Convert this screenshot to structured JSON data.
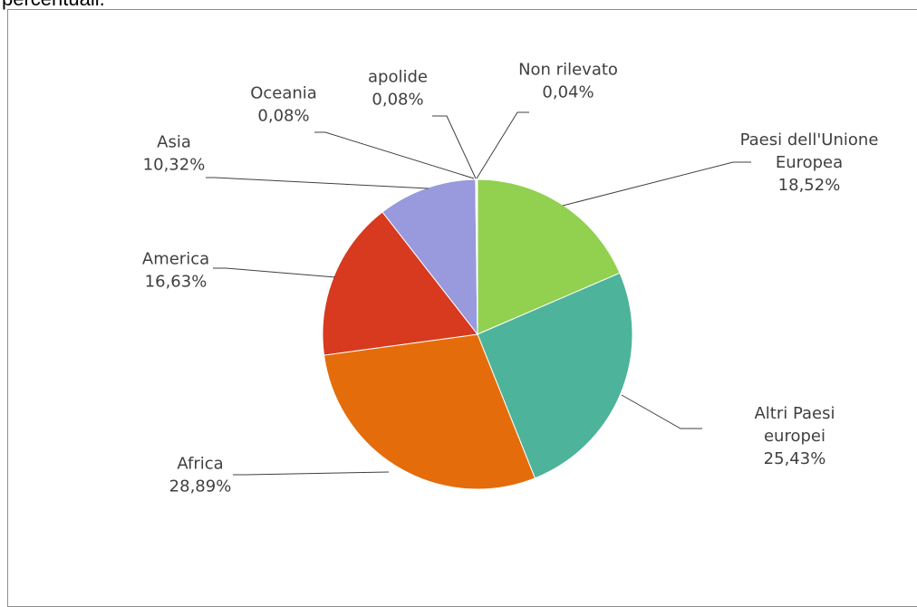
{
  "caption": {
    "text": "percentuali."
  },
  "chart_data": {
    "type": "pie",
    "title": "",
    "slices": [
      {
        "label": "Paesi dell'Unione Europea",
        "label_lines": [
          "Paesi dell'Unione",
          "Europea",
          "18,52%"
        ],
        "value": 18.52,
        "value_label": "18,52%",
        "color": "#92D050"
      },
      {
        "label": "Altri Paesi europei",
        "label_lines": [
          "Altri Paesi",
          "europei",
          "25,43%"
        ],
        "value": 25.43,
        "value_label": "25,43%",
        "color": "#4DB39A"
      },
      {
        "label": "Africa",
        "label_lines": [
          "Africa",
          "28,89%"
        ],
        "value": 28.89,
        "value_label": "28,89%",
        "color": "#E46C0A"
      },
      {
        "label": "America",
        "label_lines": [
          "America",
          "16,63%"
        ],
        "value": 16.63,
        "value_label": "16,63%",
        "color": "#D73A1E"
      },
      {
        "label": "Asia",
        "label_lines": [
          "Asia",
          "10,32%"
        ],
        "value": 10.32,
        "value_label": "10,32%",
        "color": "#9999DD"
      },
      {
        "label": "Oceania",
        "label_lines": [
          "Oceania",
          "0,08%"
        ],
        "value": 0.08,
        "value_label": "0,08%",
        "color": "#7F7F7F"
      },
      {
        "label": "apolide",
        "label_lines": [
          "apolide",
          "0,08%"
        ],
        "value": 0.08,
        "value_label": "0,08%",
        "color": "#FFC000"
      },
      {
        "label": "Non rilevato",
        "label_lines": [
          "Non rilevato",
          "0,04%"
        ],
        "value": 0.04,
        "value_label": "0,04%",
        "color": "#4472C4"
      }
    ],
    "start_angle": "12 o'clock",
    "direction": "clockwise",
    "legend": "none",
    "data_labels": "outside with leader lines"
  }
}
